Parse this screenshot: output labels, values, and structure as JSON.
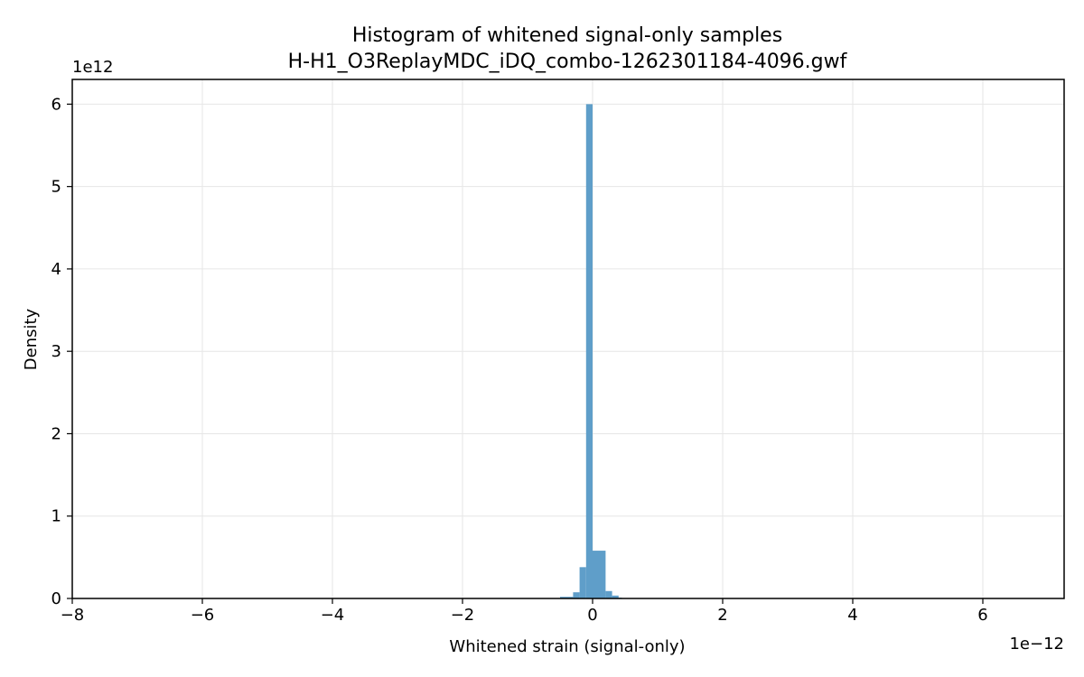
{
  "chart_data": {
    "type": "bar",
    "title": "Histogram of whitened signal-only samples",
    "subtitle": "H-H1_O3ReplayMDC_iDQ_combo-1262301184-4096.gwf",
    "xlabel": "Whitened strain (signal-only)",
    "ylabel": "Density",
    "x_offset_label": "1e−12",
    "y_offset_label": "1e12",
    "x_scale": 1e-12,
    "y_scale": 1000000000000.0,
    "xlim": [
      -8.0,
      7.25
    ],
    "ylim": [
      0,
      6.3
    ],
    "x_ticks": [
      -8,
      -6,
      -4,
      -2,
      0,
      2,
      4,
      6
    ],
    "x_tick_labels": [
      "−8",
      "−6",
      "−4",
      "−2",
      "0",
      "2",
      "4",
      "6"
    ],
    "y_ticks": [
      0,
      1,
      2,
      3,
      4,
      5,
      6
    ],
    "y_tick_labels": [
      "0",
      "1",
      "2",
      "3",
      "4",
      "5",
      "6"
    ],
    "grid": true,
    "color": "#5f9ec9",
    "bins": [
      {
        "x0": -0.5,
        "x1": -0.3,
        "value": 0.02
      },
      {
        "x0": -0.3,
        "x1": -0.2,
        "value": 0.075
      },
      {
        "x0": -0.2,
        "x1": -0.1,
        "value": 0.38
      },
      {
        "x0": -0.1,
        "x1": 0.0,
        "value": 6.0
      },
      {
        "x0": 0.0,
        "x1": 0.2,
        "value": 0.58
      },
      {
        "x0": 0.2,
        "x1": 0.3,
        "value": 0.09
      },
      {
        "x0": 0.3,
        "x1": 0.4,
        "value": 0.035
      },
      {
        "x0": 0.4,
        "x1": 0.45,
        "value": 0.01
      }
    ]
  }
}
